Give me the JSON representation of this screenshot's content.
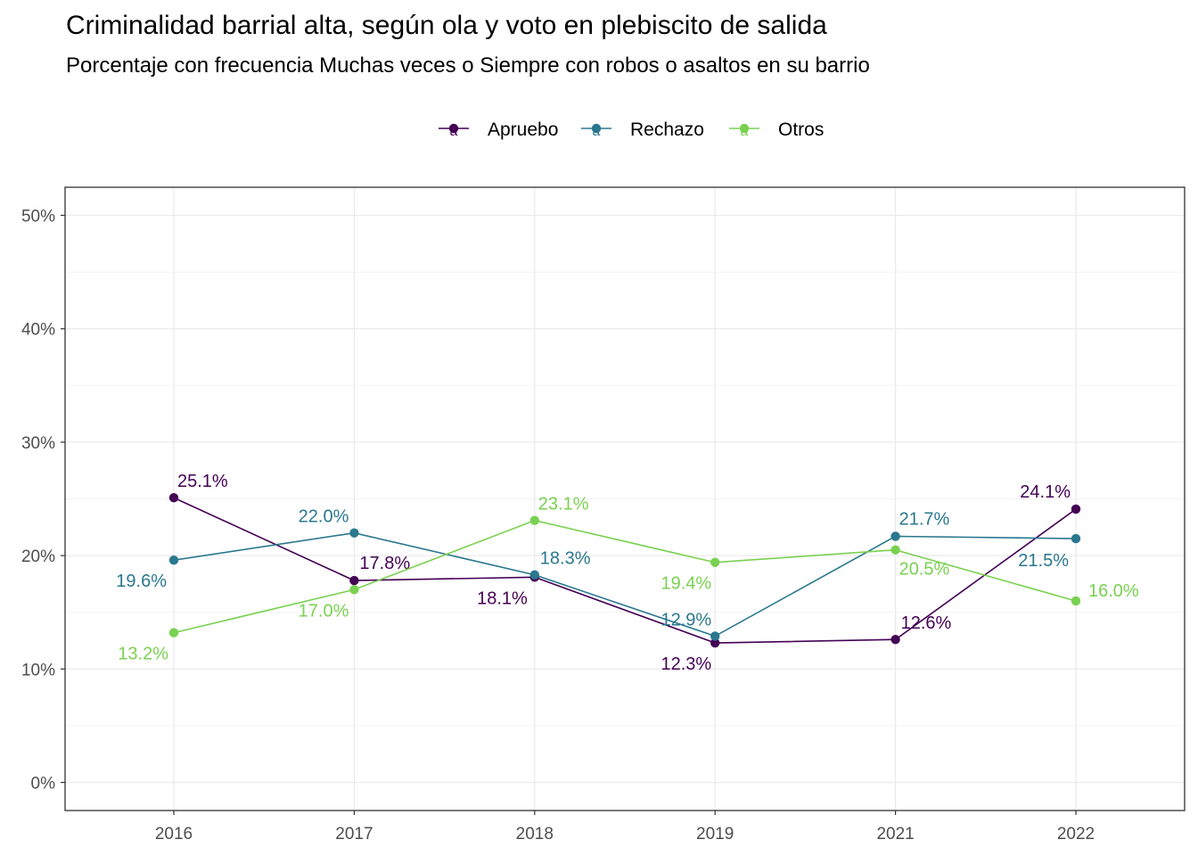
{
  "chart_data": {
    "type": "line",
    "title": "Criminalidad barrial alta, según ola y voto en plebiscito de salida",
    "subtitle": "Porcentaje con frecuencia Muchas veces o Siempre con robos o asaltos en su barrio",
    "xlabel": "",
    "ylabel": "",
    "categories": [
      "2016",
      "2017",
      "2018",
      "2019",
      "2021",
      "2022"
    ],
    "ylim": [
      0,
      50
    ],
    "yticks": [
      "0%",
      "10%",
      "20%",
      "30%",
      "40%",
      "50%"
    ],
    "legend_position": "top",
    "grid": true,
    "series": [
      {
        "name": "Apruebo",
        "color": "#440154",
        "values": [
          25.1,
          17.8,
          18.1,
          12.3,
          12.6,
          24.1
        ],
        "labels": [
          "25.1%",
          "17.8%",
          "18.1%",
          "12.3%",
          "12.6%",
          "24.1%"
        ]
      },
      {
        "name": "Rechazo",
        "color": "#2A788E",
        "values": [
          19.6,
          22.0,
          18.3,
          12.9,
          21.7,
          21.5
        ],
        "labels": [
          "19.6%",
          "22.0%",
          "18.3%",
          "12.9%",
          "21.7%",
          "21.5%"
        ]
      },
      {
        "name": "Otros",
        "color": "#7AD151",
        "values": [
          13.2,
          17.0,
          23.1,
          19.4,
          20.5,
          16.0
        ],
        "labels": [
          "13.2%",
          "17.0%",
          "23.1%",
          "19.4%",
          "20.5%",
          "16.0%"
        ]
      }
    ],
    "legend_glyph": "a"
  }
}
